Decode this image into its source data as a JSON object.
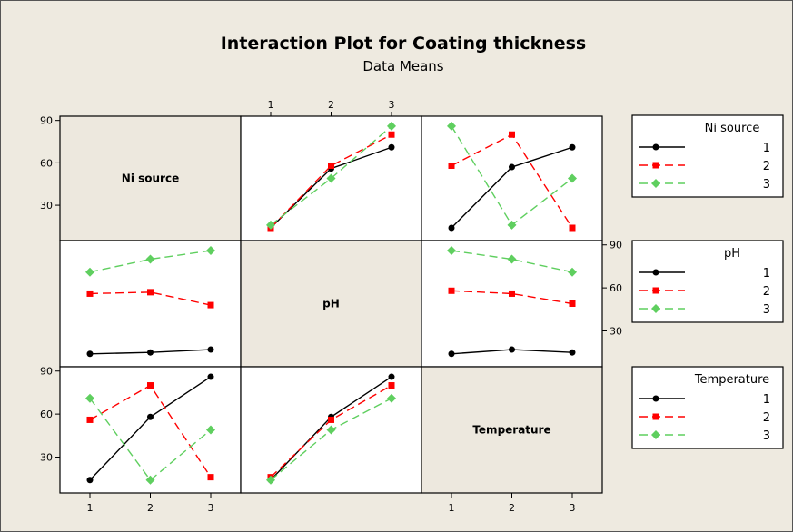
{
  "title": "Interaction Plot for Coating thickness",
  "subtitle": "Data Means",
  "colors": {
    "background": "#eeeae0",
    "diag_fill": "#ede8de",
    "plot_fill": "#ffffff",
    "series": [
      "#000000",
      "#ff0000",
      "#5fcf5f"
    ],
    "line_styles": [
      "solid",
      "dashed",
      "dashed"
    ],
    "markers": [
      "circle",
      "square",
      "diamond"
    ]
  },
  "factors": [
    "Ni source",
    "pH",
    "Temperature"
  ],
  "axis": {
    "x_ticks": [
      "1",
      "2",
      "3"
    ],
    "y_ticks": [
      "30",
      "60",
      "90"
    ],
    "ylim": [
      5,
      93
    ]
  },
  "legends": [
    {
      "title": "Ni source",
      "items": [
        "1",
        "2",
        "3"
      ]
    },
    {
      "title": "pH",
      "items": [
        "1",
        "2",
        "3"
      ]
    },
    {
      "title": "Temperature",
      "items": [
        "1",
        "2",
        "3"
      ]
    }
  ],
  "chart_data": {
    "type": "line",
    "title": "Interaction Plot for Coating thickness",
    "subtitle": "Data Means",
    "panels": [
      {
        "row_factor": "Ni source",
        "col_factor": "pH",
        "x": [
          1,
          2,
          3
        ],
        "series": [
          {
            "name": "1",
            "values": [
              14,
              56,
              71
            ]
          },
          {
            "name": "2",
            "values": [
              14,
              58,
              80
            ]
          },
          {
            "name": "3",
            "values": [
              16,
              49,
              86
            ]
          }
        ]
      },
      {
        "row_factor": "Ni source",
        "col_factor": "Temperature",
        "x": [
          1,
          2,
          3
        ],
        "series": [
          {
            "name": "1",
            "values": [
              14,
              57,
              71
            ]
          },
          {
            "name": "2",
            "values": [
              58,
              80,
              14
            ]
          },
          {
            "name": "3",
            "values": [
              86,
              16,
              49
            ]
          }
        ]
      },
      {
        "row_factor": "pH",
        "col_factor": "Ni source",
        "x": [
          1,
          2,
          3
        ],
        "series": [
          {
            "name": "1",
            "values": [
              14,
              15,
              17
            ]
          },
          {
            "name": "2",
            "values": [
              56,
              57,
              48
            ]
          },
          {
            "name": "3",
            "values": [
              71,
              80,
              86
            ]
          }
        ]
      },
      {
        "row_factor": "pH",
        "col_factor": "Temperature",
        "x": [
          1,
          2,
          3
        ],
        "series": [
          {
            "name": "1",
            "values": [
              14,
              17,
              15
            ]
          },
          {
            "name": "2",
            "values": [
              58,
              56,
              49
            ]
          },
          {
            "name": "3",
            "values": [
              86,
              80,
              71
            ]
          }
        ]
      },
      {
        "row_factor": "Temperature",
        "col_factor": "Ni source",
        "x": [
          1,
          2,
          3
        ],
        "series": [
          {
            "name": "1",
            "values": [
              14,
              58,
              86
            ]
          },
          {
            "name": "2",
            "values": [
              56,
              80,
              16
            ]
          },
          {
            "name": "3",
            "values": [
              71,
              14,
              49
            ]
          }
        ]
      },
      {
        "row_factor": "Temperature",
        "col_factor": "pH",
        "x": [
          1,
          2,
          3
        ],
        "series": [
          {
            "name": "1",
            "values": [
              14,
              58,
              86
            ]
          },
          {
            "name": "2",
            "values": [
              16,
              56,
              80
            ]
          },
          {
            "name": "3",
            "values": [
              14,
              49,
              71
            ]
          }
        ]
      }
    ]
  }
}
